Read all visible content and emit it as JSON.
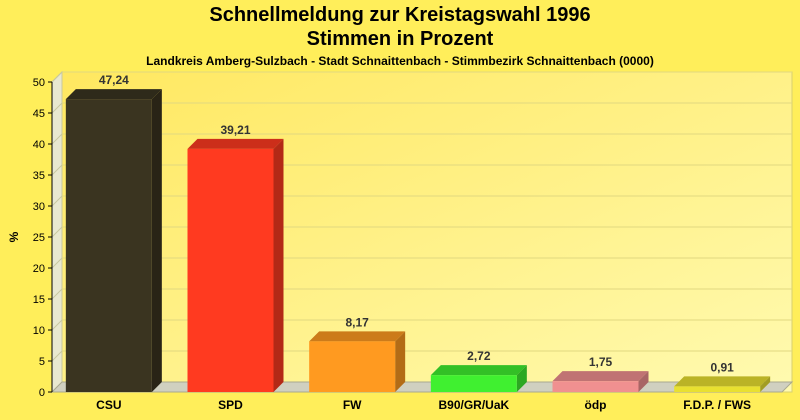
{
  "chart_data": {
    "type": "bar",
    "title": "Schnellmeldung zur Kreistagswahl 1996",
    "title_line2": "Stimmen in Prozent",
    "subtitle": "Landkreis Amberg-Sulzbach - Stadt Schnaittenbach - Stimmbezirk Schnaittenbach (0000)",
    "ylabel": "%",
    "xlabel": "",
    "ylim": [
      0,
      50
    ],
    "yticks": [
      0,
      5,
      10,
      15,
      20,
      25,
      30,
      35,
      40,
      45,
      50
    ],
    "categories": [
      "CSU",
      "SPD",
      "FW",
      "B90/GR/UaK",
      "ödp",
      "F.D.P. / FWS"
    ],
    "values": [
      47.24,
      39.21,
      8.17,
      2.72,
      1.75,
      0.91
    ],
    "value_labels": [
      "47,24",
      "39,21",
      "8,17",
      "2,72",
      "1,75",
      "0,91"
    ],
    "colors": [
      "#3a3420",
      "#ff3a20",
      "#ff9a20",
      "#40f030",
      "#f09090",
      "#e8e030"
    ],
    "grid": true,
    "legend": "none"
  }
}
